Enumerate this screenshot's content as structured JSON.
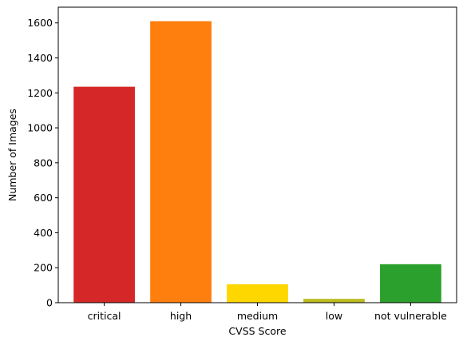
{
  "chart_data": {
    "type": "bar",
    "title": "",
    "xlabel": "CVSS Score",
    "ylabel": "Number of Images",
    "categories": [
      "critical",
      "high",
      "medium",
      "low",
      "not vulnerable"
    ],
    "values": [
      1235,
      1610,
      105,
      22,
      220
    ],
    "colors": [
      "#d62728",
      "#ff7f0e",
      "#ffd700",
      "#bcbd22",
      "#2ca02c"
    ],
    "ylim": [
      0,
      1690
    ],
    "yticks": [
      0,
      200,
      400,
      600,
      800,
      1000,
      1200,
      1400,
      1600
    ],
    "grid": false,
    "legend": "none"
  }
}
